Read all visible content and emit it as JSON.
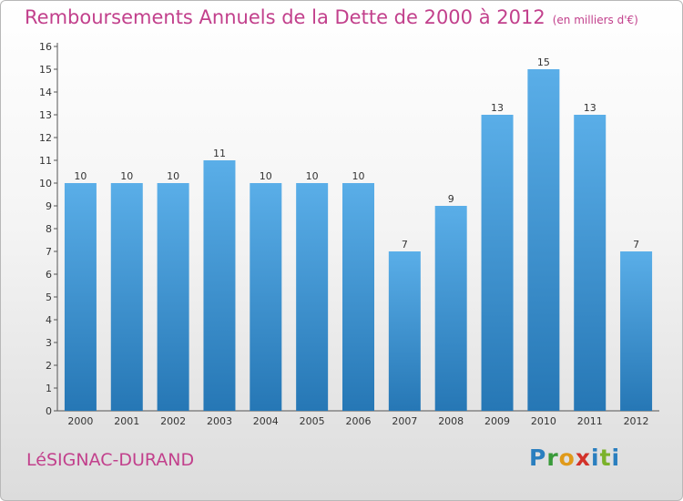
{
  "header": {
    "title": "Remboursements Annuels de la Dette de 2000 à 2012",
    "unit": "(en milliers d'€)"
  },
  "footer": {
    "place": "LéSIGNAC-DURAND",
    "logo": "Proxiti"
  },
  "colors": {
    "title": "#c2408c",
    "bar_light": "#5aaee8",
    "bar_dark": "#2677b5"
  },
  "chart_data": {
    "type": "bar",
    "title": "Remboursements Annuels de la Dette de 2000 à 2012",
    "subtitle": "(en milliers d'€)",
    "xlabel": "",
    "ylabel": "",
    "categories": [
      "2000",
      "2001",
      "2002",
      "2003",
      "2004",
      "2005",
      "2006",
      "2007",
      "2008",
      "2009",
      "2010",
      "2011",
      "2012"
    ],
    "values": [
      10,
      10,
      10,
      11,
      10,
      10,
      10,
      7,
      9,
      13,
      15,
      13,
      7
    ],
    "ylim": [
      0,
      16
    ],
    "yticks": [
      0,
      1,
      2,
      3,
      4,
      5,
      6,
      7,
      8,
      9,
      10,
      11,
      12,
      13,
      14,
      15,
      16
    ],
    "grid": false,
    "data_labels": true
  }
}
